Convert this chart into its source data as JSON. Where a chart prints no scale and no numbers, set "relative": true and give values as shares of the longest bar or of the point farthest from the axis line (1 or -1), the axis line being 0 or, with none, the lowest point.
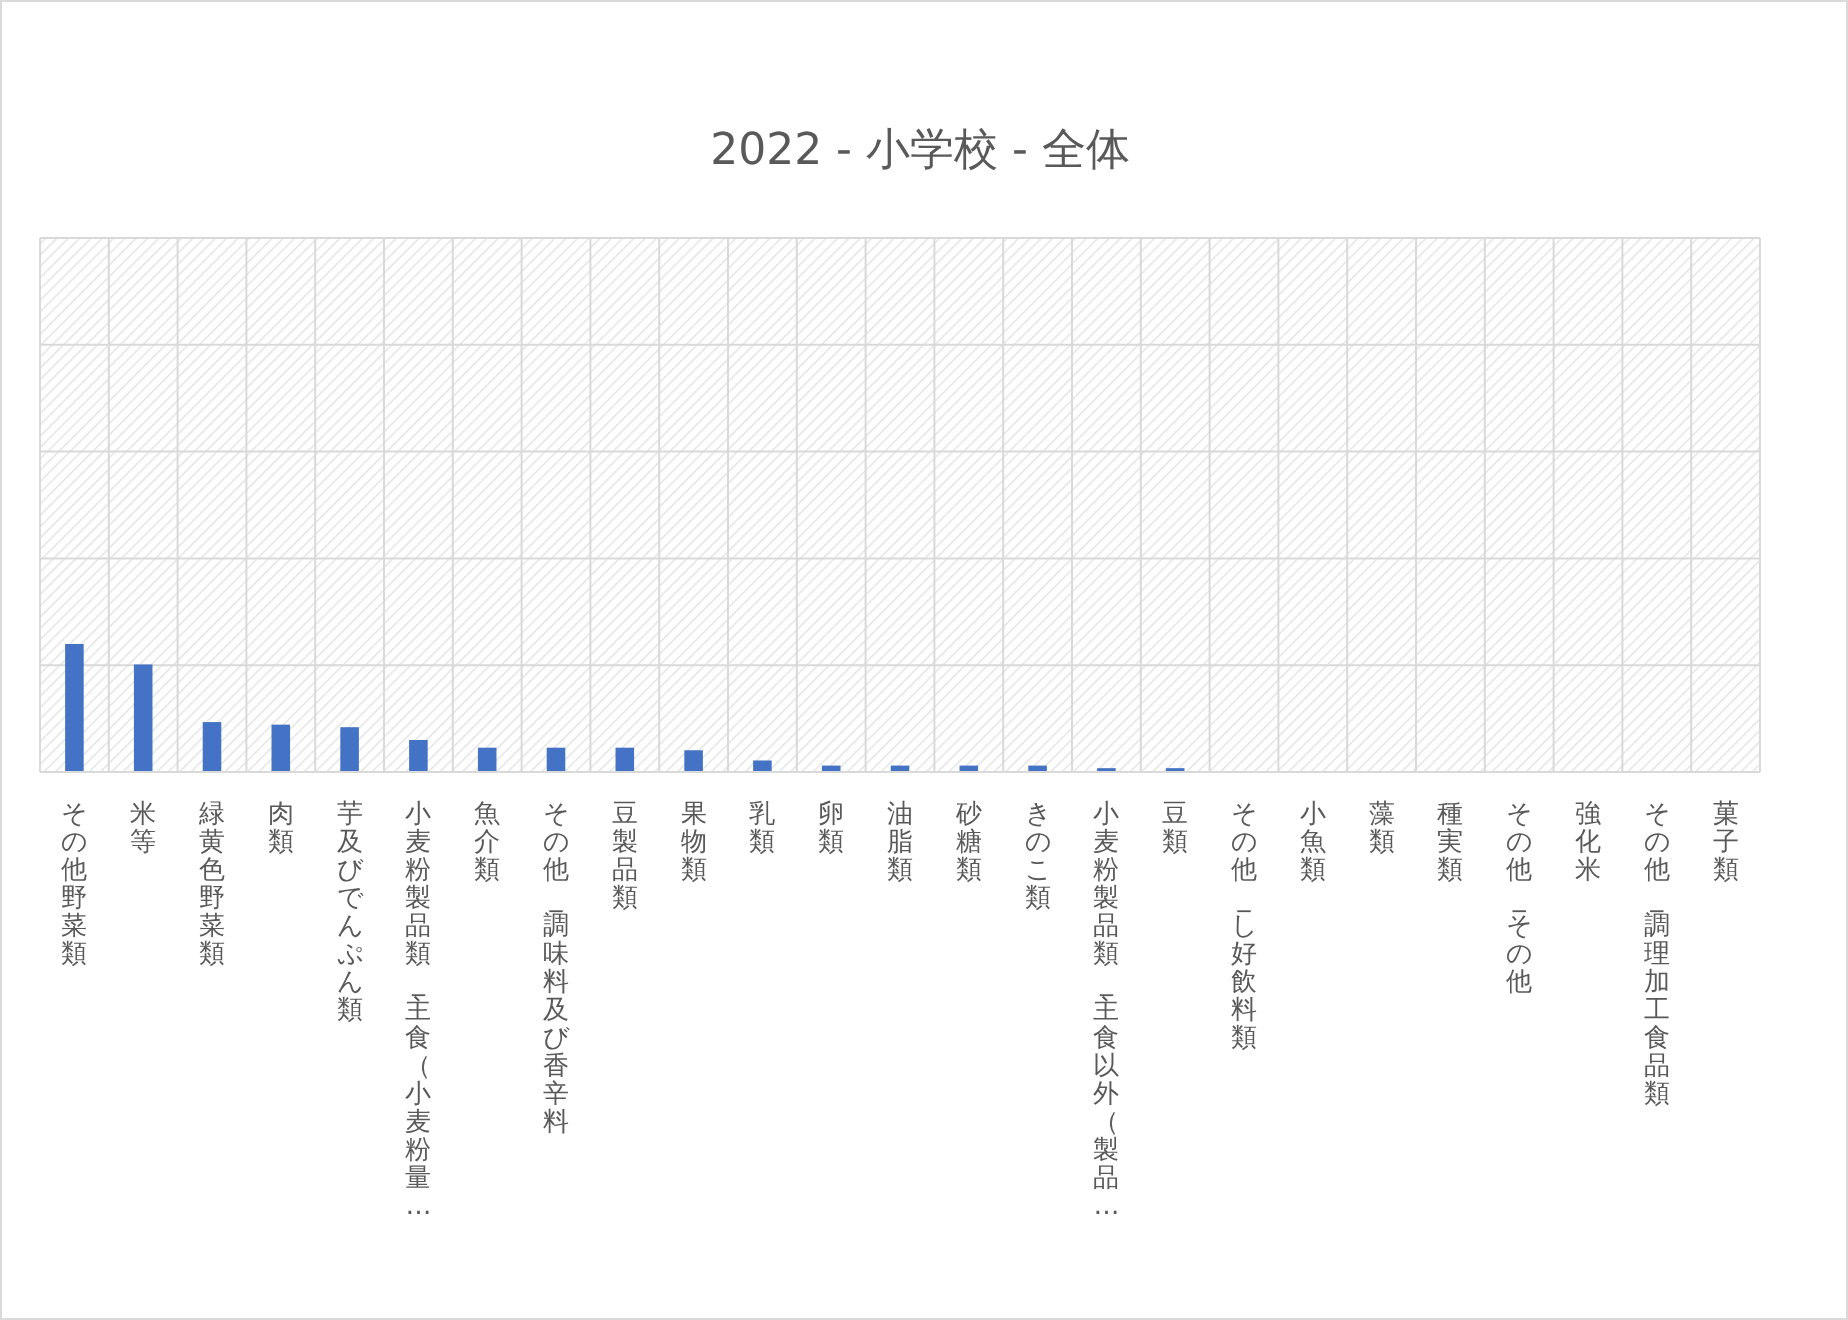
{
  "chart_data": {
    "type": "bar",
    "title": "2022 - 小学校 - 全体",
    "relative": true,
    "grid": true,
    "color": "#4472c4",
    "categories": [
      "その他野菜類",
      "米等",
      "緑黄色野菜類",
      "肉類",
      "芋及びでんぷん類",
      "小麦粉製品類_主食（小麦粉量…",
      "魚介類",
      "その他_調味料及び香辛料",
      "豆製品類",
      "果物類",
      "乳類",
      "卵類",
      "油脂類",
      "砂糖類",
      "きのこ類",
      "小麦粉製品類_主食以外（製品…",
      "豆類",
      "その他_し好飲料類",
      "小魚類",
      "藻類",
      "種実類",
      "その他_その他",
      "強化米",
      "その他_調理加工食品類",
      "菓子類"
    ],
    "values": [
      1,
      0.84,
      0.39,
      0.37,
      0.35,
      0.25,
      0.19,
      0.19,
      0.19,
      0.17,
      0.09,
      0.05,
      0.05,
      0.05,
      0.05,
      0.03,
      0.03,
      0,
      0,
      0,
      0,
      0,
      0,
      0,
      0
    ]
  }
}
